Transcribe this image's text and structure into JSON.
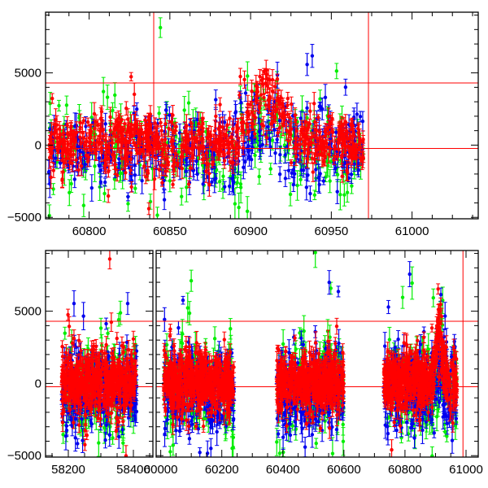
{
  "chart_data": [
    {
      "type": "scatter",
      "title": "",
      "xlabel": "",
      "ylabel": "",
      "panel": "top",
      "xlim": [
        60773,
        61041
      ],
      "ylim": [
        -5100,
        9200
      ],
      "xticks": [
        60800,
        60850,
        60900,
        60950,
        61000
      ],
      "xtick_labels": [
        "60800",
        "60850",
        "60900",
        "60950",
        "61000"
      ],
      "yticks": [
        -5000,
        0,
        5000
      ],
      "ytick_labels": [
        "−5000",
        "0",
        "5000"
      ],
      "observing_windows": [
        [
          60775,
          60970
        ]
      ],
      "hlines": [
        4300,
        -230
      ],
      "vlines": [
        60840,
        60973
      ],
      "grid": false
    },
    {
      "type": "scatter",
      "title": "",
      "xlabel": "",
      "ylabel": "",
      "panel": "bottom",
      "broken_axis": true,
      "segments": [
        {
          "xlim": [
            58130,
            58460
          ],
          "xticks": [
            58200,
            58400
          ],
          "xtick_labels": [
            "58200",
            "58400"
          ]
        },
        {
          "xlim": [
            59985,
            61040
          ],
          "xticks": [
            60000,
            60200,
            60400,
            60600,
            60800,
            61000
          ],
          "xtick_labels": [
            "60000",
            "60200",
            "60400",
            "60600",
            "60800",
            "61000"
          ]
        }
      ],
      "ylim": [
        -5100,
        9200
      ],
      "yticks": [
        -5000,
        0,
        5000
      ],
      "ytick_labels": [
        "−5000",
        "0",
        "5000"
      ],
      "observing_windows": [
        [
          58180,
          58410
        ],
        [
          60010,
          60240
        ],
        [
          60380,
          60600
        ],
        [
          60730,
          60970
        ]
      ],
      "hlines": [
        4300,
        -230
      ],
      "vlines": [
        60990
      ],
      "grid": false
    }
  ],
  "series": [
    {
      "name": "green",
      "color": "#00ee00",
      "mean": -300,
      "scatter": 1500,
      "error": 700,
      "flare_amp": 1500,
      "points_per_window_day": 0.9
    },
    {
      "name": "blue",
      "color": "#0000ee",
      "mean": -500,
      "scatter": 1300,
      "error": 600,
      "flare_amp": 2000,
      "points_per_window_day": 1.2
    },
    {
      "name": "red",
      "color": "#ff0000",
      "mean": 100,
      "scatter": 900,
      "error": 500,
      "flare_amp": 3500,
      "points_per_window_day": 2.2
    }
  ],
  "flare": {
    "center": 60910,
    "width": 14
  },
  "line_color": "#ff0000"
}
